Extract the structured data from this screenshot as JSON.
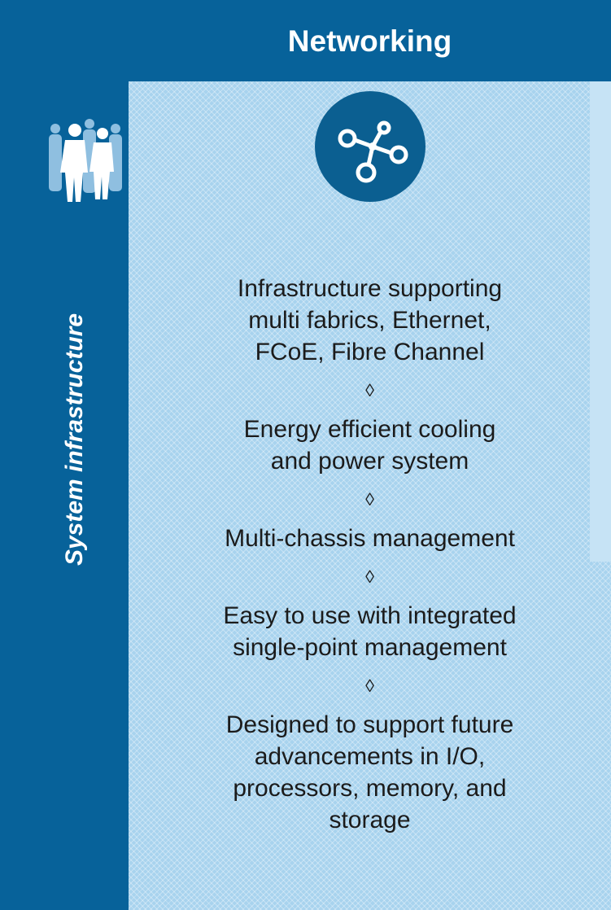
{
  "header": {
    "title": "Networking"
  },
  "side_label": "System infrastructure",
  "separator": "◊",
  "items": [
    [
      "Infrastructure supporting",
      "multi fabrics, Ethernet,",
      "FCoE, Fibre Channel"
    ],
    [
      "Energy efficient cooling",
      "and power system"
    ],
    [
      "Multi-chassis management"
    ],
    [
      "Easy to use with integrated",
      "single-point management"
    ],
    [
      "Designed to support future",
      "advancements in I/O,",
      "processors, memory, and",
      "storage"
    ]
  ]
}
